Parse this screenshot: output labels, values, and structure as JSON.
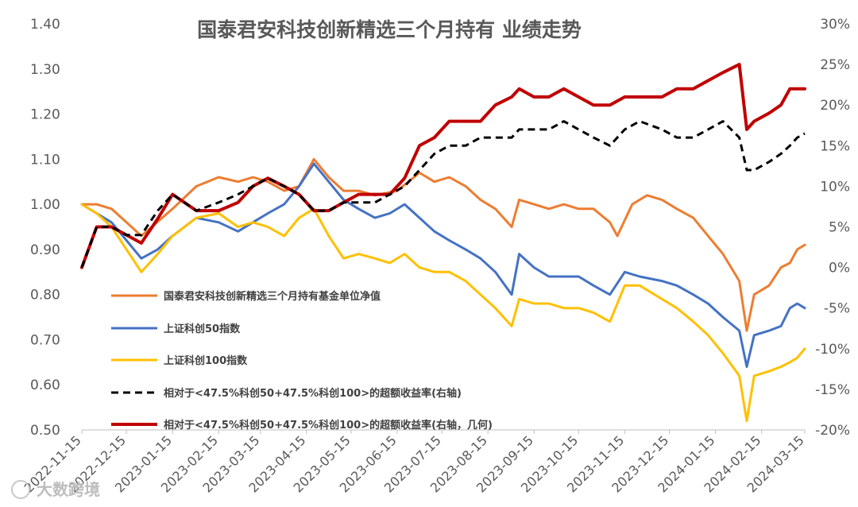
{
  "chart_data": {
    "type": "line",
    "title": "国泰君安科技创新精选三个月持有 业绩走势",
    "left_axis": {
      "ylim": [
        0.5,
        1.4
      ],
      "ticks": [
        "0.50",
        "0.60",
        "0.70",
        "0.80",
        "0.90",
        "1.00",
        "1.10",
        "1.20",
        "1.30",
        "1.40"
      ]
    },
    "right_axis": {
      "ylim": [
        -20,
        30
      ],
      "ticks": [
        "-20%",
        "-15%",
        "-10%",
        "-5%",
        "0%",
        "5%",
        "10%",
        "15%",
        "20%",
        "25%",
        "30%"
      ]
    },
    "x_ticks": [
      "2022-11-15",
      "2022-12-15",
      "2023-01-15",
      "2023-02-15",
      "2023-03-15",
      "2023-04-15",
      "2023-05-15",
      "2023-06-15",
      "2023-07-15",
      "2023-08-15",
      "2023-09-15",
      "2023-10-15",
      "2023-11-15",
      "2023-12-15",
      "2024-01-15",
      "2024-02-15",
      "2024-03-15"
    ],
    "legend_position": "left-middle",
    "grid": false,
    "series": [
      {
        "name": "国泰君安科技创新精选三个月持有基金单位净值",
        "axis": "left",
        "color": "#ED7D31",
        "dash": "solid",
        "points": [
          [
            "2022-11-15",
            1.0
          ],
          [
            "2022-11-25",
            1.0
          ],
          [
            "2022-12-05",
            0.99
          ],
          [
            "2022-12-15",
            0.96
          ],
          [
            "2022-12-25",
            0.93
          ],
          [
            "2023-01-01",
            0.95
          ],
          [
            "2023-01-15",
            0.99
          ],
          [
            "2023-01-31",
            1.04
          ],
          [
            "2023-02-15",
            1.06
          ],
          [
            "2023-02-28",
            1.05
          ],
          [
            "2023-03-10",
            1.06
          ],
          [
            "2023-03-20",
            1.05
          ],
          [
            "2023-03-31",
            1.03
          ],
          [
            "2023-04-10",
            1.04
          ],
          [
            "2023-04-20",
            1.1
          ],
          [
            "2023-04-30",
            1.06
          ],
          [
            "2023-05-10",
            1.03
          ],
          [
            "2023-05-20",
            1.03
          ],
          [
            "2023-05-31",
            1.02
          ],
          [
            "2023-06-15",
            1.03
          ],
          [
            "2023-06-30",
            1.07
          ],
          [
            "2023-07-10",
            1.05
          ],
          [
            "2023-07-20",
            1.06
          ],
          [
            "2023-07-31",
            1.04
          ],
          [
            "2023-08-10",
            1.01
          ],
          [
            "2023-08-20",
            0.99
          ],
          [
            "2023-08-31",
            0.95
          ],
          [
            "2023-09-05",
            1.01
          ],
          [
            "2023-09-15",
            1.0
          ],
          [
            "2023-09-25",
            0.99
          ],
          [
            "2023-10-05",
            1.0
          ],
          [
            "2023-10-15",
            0.99
          ],
          [
            "2023-10-25",
            0.99
          ],
          [
            "2023-11-05",
            0.96
          ],
          [
            "2023-11-10",
            0.93
          ],
          [
            "2023-11-20",
            1.0
          ],
          [
            "2023-11-30",
            1.02
          ],
          [
            "2023-12-10",
            1.01
          ],
          [
            "2023-12-20",
            0.99
          ],
          [
            "2023-12-31",
            0.97
          ],
          [
            "2024-01-10",
            0.93
          ],
          [
            "2024-01-20",
            0.89
          ],
          [
            "2024-01-31",
            0.83
          ],
          [
            "2024-02-05",
            0.72
          ],
          [
            "2024-02-10",
            0.8
          ],
          [
            "2024-02-20",
            0.82
          ],
          [
            "2024-02-28",
            0.86
          ],
          [
            "2024-03-05",
            0.87
          ],
          [
            "2024-03-10",
            0.9
          ],
          [
            "2024-03-15",
            0.91
          ]
        ]
      },
      {
        "name": "上证科创50指数",
        "axis": "left",
        "color": "#4472C4",
        "dash": "solid",
        "points": [
          [
            "2022-11-15",
            1.0
          ],
          [
            "2022-11-25",
            0.98
          ],
          [
            "2022-12-05",
            0.96
          ],
          [
            "2022-12-15",
            0.92
          ],
          [
            "2022-12-25",
            0.88
          ],
          [
            "2023-01-05",
            0.9
          ],
          [
            "2023-01-15",
            0.93
          ],
          [
            "2023-01-31",
            0.97
          ],
          [
            "2023-02-15",
            0.96
          ],
          [
            "2023-02-28",
            0.94
          ],
          [
            "2023-03-10",
            0.96
          ],
          [
            "2023-03-20",
            0.98
          ],
          [
            "2023-03-31",
            1.0
          ],
          [
            "2023-04-10",
            1.04
          ],
          [
            "2023-04-20",
            1.09
          ],
          [
            "2023-04-30",
            1.05
          ],
          [
            "2023-05-10",
            1.01
          ],
          [
            "2023-05-20",
            0.99
          ],
          [
            "2023-05-31",
            0.97
          ],
          [
            "2023-06-10",
            0.98
          ],
          [
            "2023-06-20",
            1.0
          ],
          [
            "2023-06-30",
            0.97
          ],
          [
            "2023-07-10",
            0.94
          ],
          [
            "2023-07-20",
            0.92
          ],
          [
            "2023-07-31",
            0.9
          ],
          [
            "2023-08-10",
            0.88
          ],
          [
            "2023-08-20",
            0.85
          ],
          [
            "2023-08-31",
            0.8
          ],
          [
            "2023-09-05",
            0.89
          ],
          [
            "2023-09-15",
            0.86
          ],
          [
            "2023-09-25",
            0.84
          ],
          [
            "2023-10-05",
            0.84
          ],
          [
            "2023-10-15",
            0.84
          ],
          [
            "2023-10-25",
            0.82
          ],
          [
            "2023-11-05",
            0.8
          ],
          [
            "2023-11-15",
            0.85
          ],
          [
            "2023-11-25",
            0.84
          ],
          [
            "2023-12-10",
            0.83
          ],
          [
            "2023-12-20",
            0.82
          ],
          [
            "2023-12-31",
            0.8
          ],
          [
            "2024-01-10",
            0.78
          ],
          [
            "2024-01-20",
            0.75
          ],
          [
            "2024-01-31",
            0.72
          ],
          [
            "2024-02-05",
            0.64
          ],
          [
            "2024-02-10",
            0.71
          ],
          [
            "2024-02-20",
            0.72
          ],
          [
            "2024-02-28",
            0.73
          ],
          [
            "2024-03-05",
            0.77
          ],
          [
            "2024-03-10",
            0.78
          ],
          [
            "2024-03-15",
            0.77
          ]
        ]
      },
      {
        "name": "上证科创100指数",
        "axis": "left",
        "color": "#FFC000",
        "dash": "solid",
        "points": [
          [
            "2022-11-15",
            1.0
          ],
          [
            "2022-11-25",
            0.98
          ],
          [
            "2022-12-05",
            0.95
          ],
          [
            "2022-12-15",
            0.9
          ],
          [
            "2022-12-25",
            0.85
          ],
          [
            "2023-01-05",
            0.89
          ],
          [
            "2023-01-15",
            0.93
          ],
          [
            "2023-01-31",
            0.97
          ],
          [
            "2023-02-15",
            0.98
          ],
          [
            "2023-02-28",
            0.95
          ],
          [
            "2023-03-10",
            0.96
          ],
          [
            "2023-03-20",
            0.95
          ],
          [
            "2023-03-31",
            0.93
          ],
          [
            "2023-04-10",
            0.97
          ],
          [
            "2023-04-20",
            0.99
          ],
          [
            "2023-04-30",
            0.93
          ],
          [
            "2023-05-10",
            0.88
          ],
          [
            "2023-05-20",
            0.89
          ],
          [
            "2023-05-31",
            0.88
          ],
          [
            "2023-06-10",
            0.87
          ],
          [
            "2023-06-20",
            0.89
          ],
          [
            "2023-06-30",
            0.86
          ],
          [
            "2023-07-10",
            0.85
          ],
          [
            "2023-07-20",
            0.85
          ],
          [
            "2023-07-31",
            0.83
          ],
          [
            "2023-08-10",
            0.8
          ],
          [
            "2023-08-20",
            0.77
          ],
          [
            "2023-08-31",
            0.73
          ],
          [
            "2023-09-05",
            0.79
          ],
          [
            "2023-09-15",
            0.78
          ],
          [
            "2023-09-25",
            0.78
          ],
          [
            "2023-10-05",
            0.77
          ],
          [
            "2023-10-15",
            0.77
          ],
          [
            "2023-10-25",
            0.76
          ],
          [
            "2023-11-05",
            0.74
          ],
          [
            "2023-11-15",
            0.82
          ],
          [
            "2023-11-25",
            0.82
          ],
          [
            "2023-12-10",
            0.79
          ],
          [
            "2023-12-20",
            0.77
          ],
          [
            "2023-12-31",
            0.74
          ],
          [
            "2024-01-10",
            0.71
          ],
          [
            "2024-01-20",
            0.67
          ],
          [
            "2024-01-31",
            0.62
          ],
          [
            "2024-02-05",
            0.52
          ],
          [
            "2024-02-10",
            0.62
          ],
          [
            "2024-02-20",
            0.63
          ],
          [
            "2024-02-28",
            0.64
          ],
          [
            "2024-03-05",
            0.65
          ],
          [
            "2024-03-10",
            0.66
          ],
          [
            "2024-03-15",
            0.68
          ]
        ]
      },
      {
        "name": "相对于<47.5%科创50+47.5%科创100>的超额收益率(右轴)",
        "axis": "right",
        "color": "#000000",
        "dash": "dash",
        "points": [
          [
            "2022-11-15",
            0
          ],
          [
            "2022-11-25",
            5
          ],
          [
            "2022-12-05",
            5
          ],
          [
            "2022-12-15",
            4
          ],
          [
            "2022-12-25",
            4
          ],
          [
            "2023-01-05",
            7
          ],
          [
            "2023-01-15",
            9
          ],
          [
            "2023-01-31",
            7
          ],
          [
            "2023-02-15",
            8
          ],
          [
            "2023-02-28",
            9
          ],
          [
            "2023-03-10",
            10
          ],
          [
            "2023-03-20",
            11
          ],
          [
            "2023-03-31",
            10
          ],
          [
            "2023-04-10",
            9
          ],
          [
            "2023-04-20",
            7
          ],
          [
            "2023-04-30",
            7
          ],
          [
            "2023-05-10",
            8
          ],
          [
            "2023-05-20",
            8
          ],
          [
            "2023-05-31",
            8
          ],
          [
            "2023-06-10",
            9
          ],
          [
            "2023-06-20",
            10
          ],
          [
            "2023-06-30",
            12
          ],
          [
            "2023-07-10",
            14
          ],
          [
            "2023-07-20",
            15
          ],
          [
            "2023-07-31",
            15
          ],
          [
            "2023-08-10",
            16
          ],
          [
            "2023-08-20",
            16
          ],
          [
            "2023-08-31",
            16
          ],
          [
            "2023-09-05",
            17
          ],
          [
            "2023-09-15",
            17
          ],
          [
            "2023-09-25",
            17
          ],
          [
            "2023-10-05",
            18
          ],
          [
            "2023-10-15",
            17
          ],
          [
            "2023-10-25",
            16
          ],
          [
            "2023-11-05",
            15
          ],
          [
            "2023-11-15",
            17
          ],
          [
            "2023-11-25",
            18
          ],
          [
            "2023-12-10",
            17
          ],
          [
            "2023-12-20",
            16
          ],
          [
            "2023-12-31",
            16
          ],
          [
            "2024-01-10",
            17
          ],
          [
            "2024-01-20",
            18
          ],
          [
            "2024-01-31",
            16
          ],
          [
            "2024-02-05",
            12
          ],
          [
            "2024-02-10",
            12
          ],
          [
            "2024-02-20",
            13
          ],
          [
            "2024-02-28",
            14
          ],
          [
            "2024-03-05",
            15
          ],
          [
            "2024-03-10",
            16
          ],
          [
            "2024-03-15",
            16.5
          ]
        ]
      },
      {
        "name": "相对于<47.5%科创50+47.5%科创100>的超额收益率(右轴，几何)",
        "axis": "right",
        "color": "#C00000",
        "dash": "solid",
        "points": [
          [
            "2022-11-15",
            0
          ],
          [
            "2022-11-25",
            5
          ],
          [
            "2022-12-05",
            5
          ],
          [
            "2022-12-15",
            4
          ],
          [
            "2022-12-25",
            3
          ],
          [
            "2023-01-05",
            6
          ],
          [
            "2023-01-15",
            9
          ],
          [
            "2023-01-31",
            7
          ],
          [
            "2023-02-15",
            7
          ],
          [
            "2023-02-28",
            8
          ],
          [
            "2023-03-10",
            10
          ],
          [
            "2023-03-20",
            11
          ],
          [
            "2023-03-31",
            10
          ],
          [
            "2023-04-10",
            9
          ],
          [
            "2023-04-20",
            7
          ],
          [
            "2023-04-30",
            7
          ],
          [
            "2023-05-10",
            8
          ],
          [
            "2023-05-20",
            9
          ],
          [
            "2023-05-31",
            9
          ],
          [
            "2023-06-10",
            9
          ],
          [
            "2023-06-20",
            11
          ],
          [
            "2023-06-30",
            15
          ],
          [
            "2023-07-10",
            16
          ],
          [
            "2023-07-20",
            18
          ],
          [
            "2023-07-31",
            18
          ],
          [
            "2023-08-10",
            18
          ],
          [
            "2023-08-20",
            20
          ],
          [
            "2023-08-31",
            21
          ],
          [
            "2023-09-05",
            22
          ],
          [
            "2023-09-15",
            21
          ],
          [
            "2023-09-25",
            21
          ],
          [
            "2023-10-05",
            22
          ],
          [
            "2023-10-15",
            21
          ],
          [
            "2023-10-25",
            20
          ],
          [
            "2023-11-05",
            20
          ],
          [
            "2023-11-15",
            21
          ],
          [
            "2023-11-25",
            21
          ],
          [
            "2023-12-10",
            21
          ],
          [
            "2023-12-20",
            22
          ],
          [
            "2023-12-31",
            22
          ],
          [
            "2024-01-10",
            23
          ],
          [
            "2024-01-20",
            24
          ],
          [
            "2024-01-31",
            25
          ],
          [
            "2024-02-05",
            17
          ],
          [
            "2024-02-10",
            18
          ],
          [
            "2024-02-20",
            19
          ],
          [
            "2024-02-28",
            20
          ],
          [
            "2024-03-05",
            22
          ],
          [
            "2024-03-10",
            22
          ],
          [
            "2024-03-15",
            22
          ]
        ]
      }
    ]
  },
  "watermark": "大数跨境"
}
